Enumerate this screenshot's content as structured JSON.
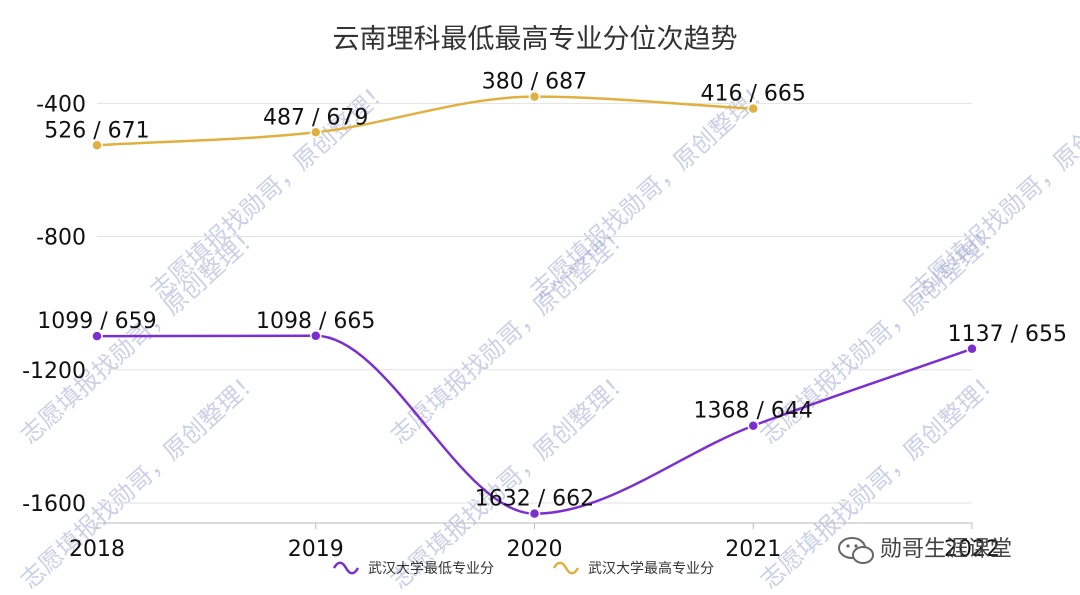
{
  "chart_data": {
    "type": "line",
    "title": "云南理科最低最高专业分位次趋势",
    "x": [
      "2018",
      "2019",
      "2020",
      "2021",
      "2022"
    ],
    "ylim": [
      -1660,
      -330
    ],
    "yticks": [
      -400,
      -800,
      -1200,
      -1600
    ],
    "ytick_labels": [
      "-400",
      "-800",
      "-1200",
      "-1600"
    ],
    "grid": true,
    "legend_position": "bottom-center",
    "series": [
      {
        "name": "武汉大学最低专业分",
        "color": "#7b2fd1",
        "values": [
          -1099,
          -1098,
          -1632,
          -1368,
          -1137
        ],
        "labels": [
          "1099 / 659",
          "1098 / 665",
          "1632 / 662",
          "1368 / 644",
          "1137 / 655"
        ]
      },
      {
        "name": "武汉大学最高专业分",
        "color": "#e0b040",
        "values": [
          -526,
          -487,
          -380,
          -416,
          null
        ],
        "labels": [
          "526 / 671",
          "487 / 679",
          "380 / 687",
          "416 / 665",
          null
        ]
      }
    ]
  },
  "watermark": {
    "text": "志愿填报找勋哥，原创整理！",
    "color": "#8a96c8"
  },
  "footer": {
    "text": "勋哥生涯课堂",
    "icon": "wechat-icon"
  }
}
